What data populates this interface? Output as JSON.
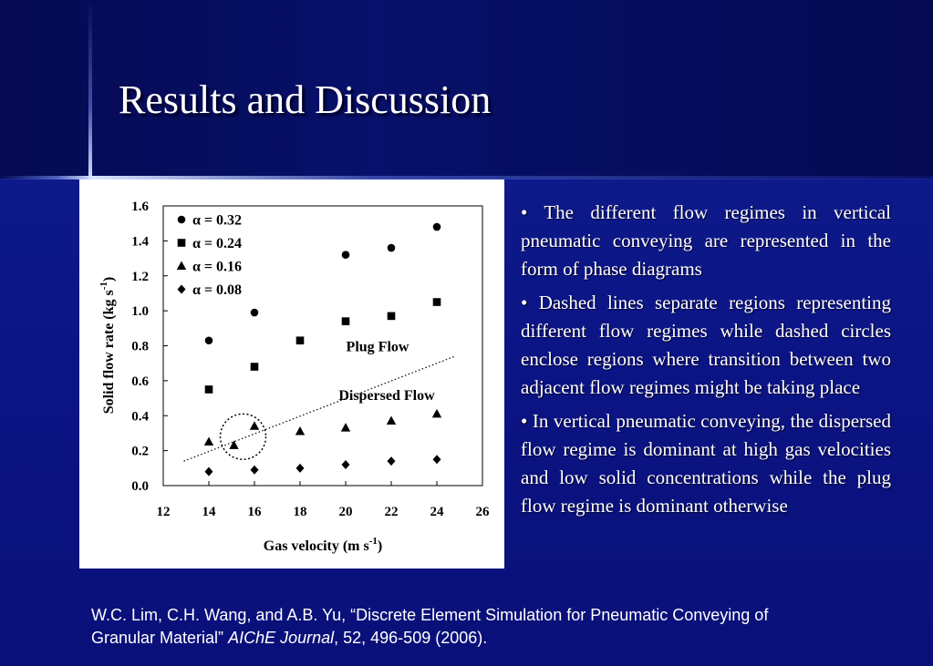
{
  "slide": {
    "title": "Results and Discussion",
    "bullets": [
      "The different flow regimes in vertical pneumatic conveying are represented in the form of phase diagrams",
      "Dashed lines separate regions representing different flow regimes while dashed circles enclose regions where transition between two adjacent flow regimes might be taking place",
      "In vertical pneumatic conveying, the dispersed flow regime is dominant at high gas velocities and low solid concentrations while the plug flow regime is dominant otherwise"
    ],
    "bullet_marker": "•",
    "citation": {
      "authors_title": "W.C. Lim, C.H. Wang, and A.B. Yu, “Discrete Element Simulation for Pneumatic Conveying of Granular Material”",
      "journal": "AIChE Journal",
      "details": ", 52, 496-509 (2006)."
    }
  },
  "chart_data": {
    "type": "scatter",
    "xlabel": "Gas velocity (m s",
    "xlabel_sup": "-1",
    "xlabel_end": ")",
    "ylabel": "Solid flow rate (kg s",
    "ylabel_sup": "-1",
    "ylabel_end": ")",
    "xlim": [
      12,
      26
    ],
    "ylim": [
      0.0,
      1.6
    ],
    "x_ticks": [
      "12",
      "14",
      "16",
      "18",
      "20",
      "22",
      "24",
      "26"
    ],
    "y_ticks": [
      "0.0",
      "0.2",
      "0.4",
      "0.6",
      "0.8",
      "1.0",
      "1.2",
      "1.4",
      "1.6"
    ],
    "legend_position": "top-left",
    "series": [
      {
        "name": "α = 0.32",
        "marker": "circle",
        "points": [
          [
            14,
            0.83
          ],
          [
            16,
            0.99
          ],
          [
            20,
            1.32
          ],
          [
            22,
            1.36
          ],
          [
            24,
            1.48
          ]
        ]
      },
      {
        "name": "α = 0.24",
        "marker": "square",
        "points": [
          [
            14,
            0.55
          ],
          [
            16,
            0.68
          ],
          [
            18,
            0.83
          ],
          [
            20,
            0.94
          ],
          [
            22,
            0.97
          ],
          [
            24,
            1.05
          ]
        ]
      },
      {
        "name": "α = 0.16",
        "marker": "triangle",
        "points": [
          [
            14,
            0.25
          ],
          [
            15.1,
            0.23
          ],
          [
            16,
            0.34
          ],
          [
            18,
            0.31
          ],
          [
            20,
            0.33
          ],
          [
            22,
            0.37
          ],
          [
            24,
            0.41
          ]
        ]
      },
      {
        "name": "α = 0.08",
        "marker": "diamond",
        "points": [
          [
            14,
            0.08
          ],
          [
            16,
            0.09
          ],
          [
            18,
            0.1
          ],
          [
            20,
            0.12
          ],
          [
            22,
            0.14
          ],
          [
            24,
            0.15
          ]
        ]
      }
    ],
    "boundary_line": {
      "style": "dotted",
      "points": [
        [
          12.9,
          0.14
        ],
        [
          24.8,
          0.74
        ]
      ]
    },
    "transition_circle": {
      "center": [
        15.5,
        0.28
      ],
      "radius_x": 1.0,
      "radius_y": 0.13
    },
    "annotations": [
      {
        "text": "Plug Flow",
        "at": [
          21.4,
          0.77
        ]
      },
      {
        "text": "Dispersed Flow",
        "at": [
          21.8,
          0.49
        ]
      }
    ]
  }
}
